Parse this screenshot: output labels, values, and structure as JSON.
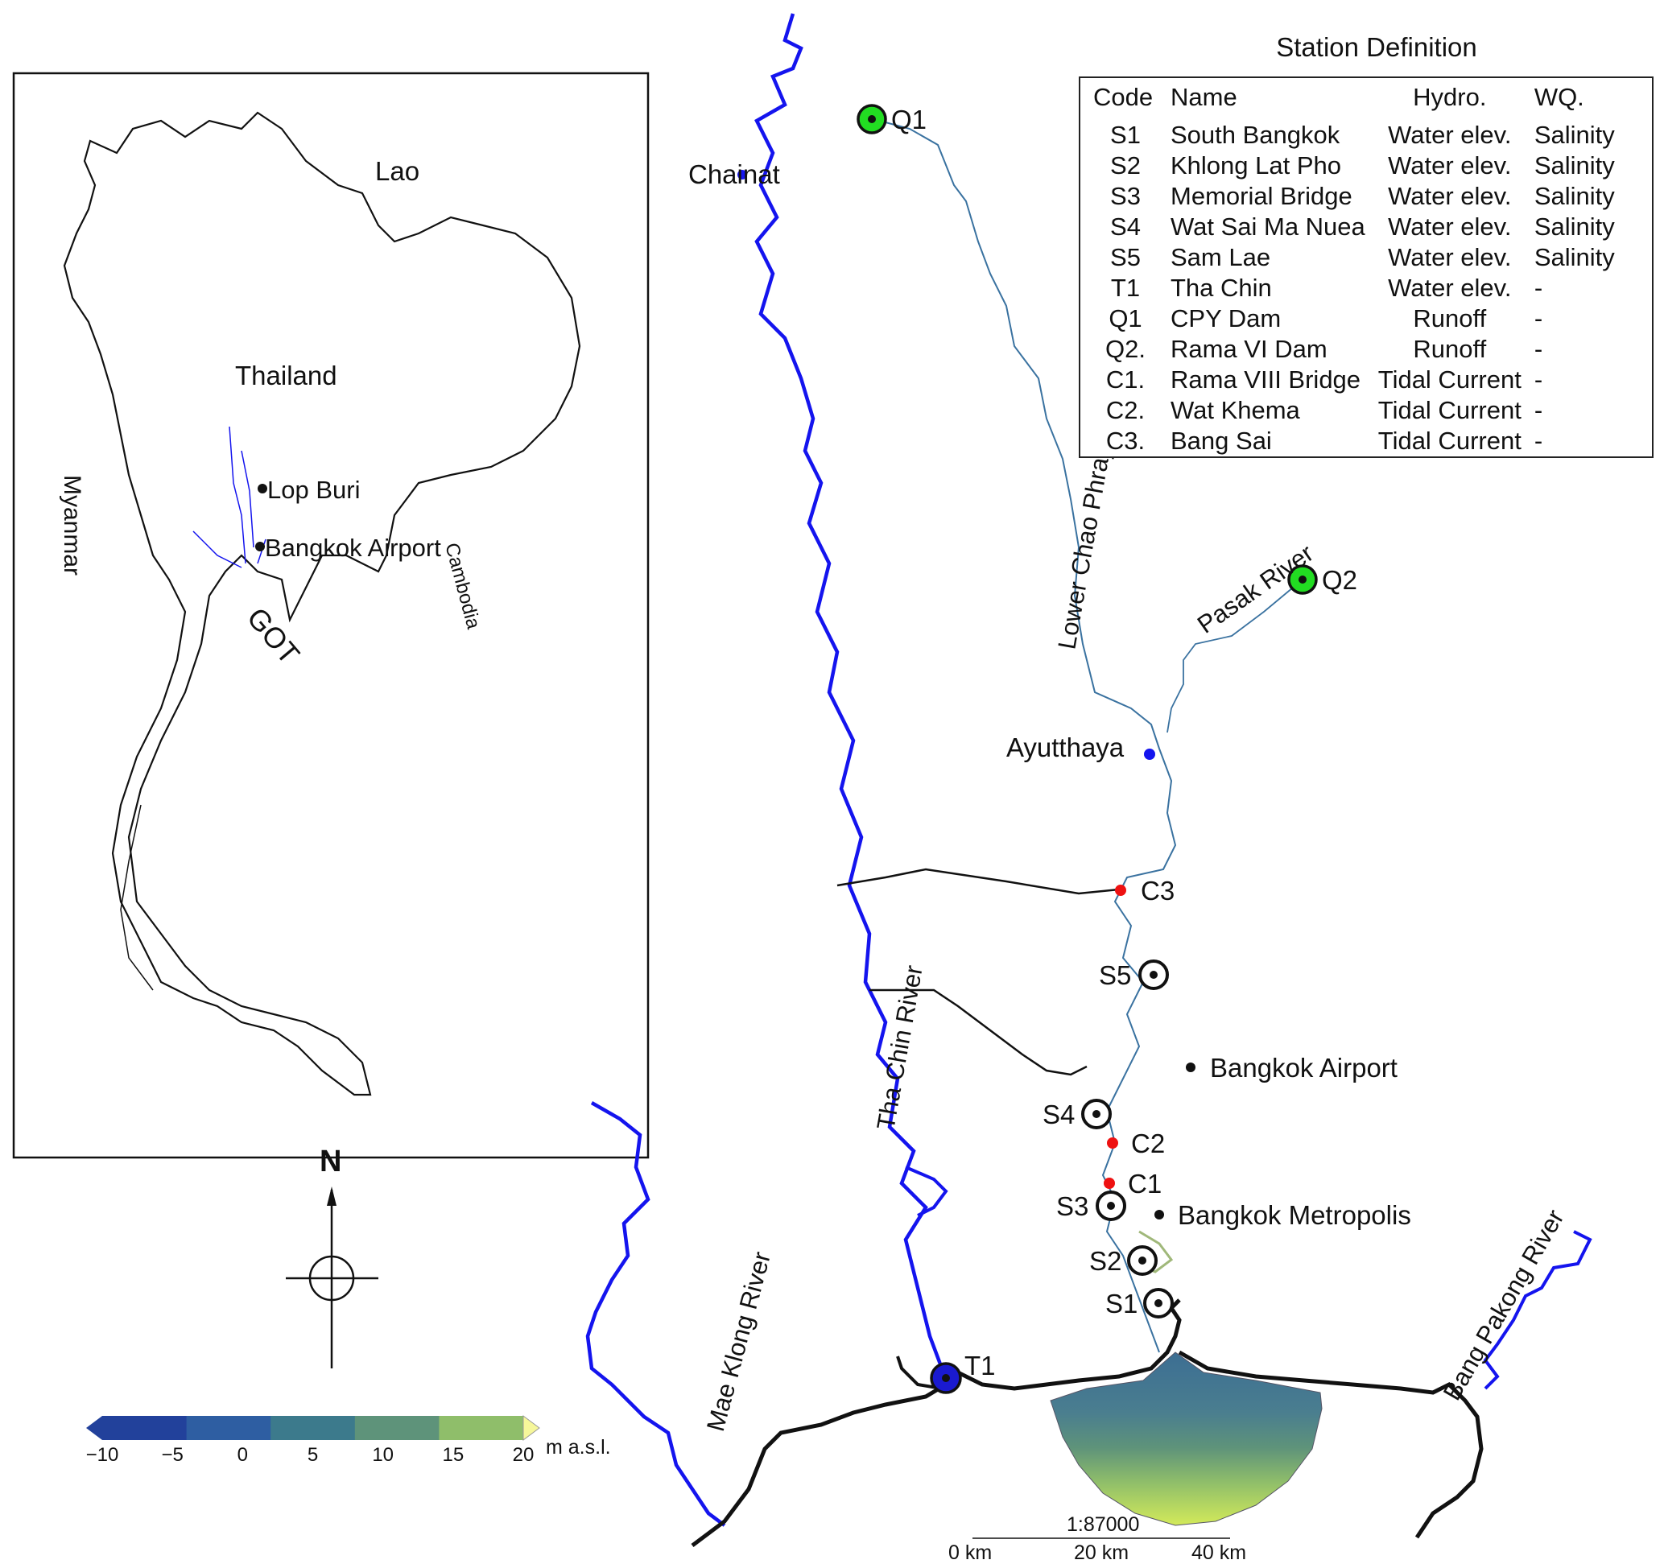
{
  "legend": {
    "title": "Station Definition",
    "headers": [
      "Code",
      "Name",
      "Hydro.",
      "WQ."
    ],
    "rows": [
      [
        "S1",
        "South Bangkok",
        "Water elev.",
        "Salinity"
      ],
      [
        "S2",
        "Khlong Lat Pho",
        "Water elev.",
        "Salinity"
      ],
      [
        "S3",
        "Memorial Bridge",
        "Water elev.",
        "Salinity"
      ],
      [
        "S4",
        "Wat Sai Ma Nuea",
        "Water elev.",
        "Salinity"
      ],
      [
        "S5",
        "Sam Lae",
        "Water elev.",
        "Salinity"
      ],
      [
        "T1",
        "Tha Chin",
        "Water elev.",
        "-"
      ],
      [
        "Q1",
        "CPY Dam",
        "Runoff",
        "-"
      ],
      [
        "Q2.",
        "Rama VI Dam",
        "Runoff",
        "-"
      ],
      [
        "C1.",
        "Rama VIII Bridge",
        "Tidal Current",
        "-"
      ],
      [
        "C2.",
        "Wat Khema",
        "Tidal Current",
        "-"
      ],
      [
        "C3.",
        "Bang Sai",
        "Tidal Current",
        "-"
      ]
    ]
  },
  "inset": {
    "countries": {
      "lao": "Lao",
      "thailand": "Thailand",
      "myanmar": "Myanmar",
      "cambodia": "Cambodia"
    },
    "gulf": "GOT",
    "places": {
      "lop_buri": "Lop Buri",
      "bangkok_airport": "Bangkok Airport"
    }
  },
  "stations": {
    "q1": "Q1",
    "q2": "Q2",
    "t1": "T1",
    "s1": "S1",
    "s2": "S2",
    "s3": "S3",
    "s4": "S4",
    "s5": "S5",
    "c1": "C1",
    "c2": "C2",
    "c3": "C3"
  },
  "places": {
    "chainat": "Chainat",
    "ayutthaya": "Ayutthaya",
    "bangkok_airport": "Bangkok Airport",
    "bangkok_metropolis": "Bangkok Metropolis"
  },
  "rivers": {
    "chao_phraya": "Lower Chao Phraya River",
    "pasak": "Pasak River",
    "tha_chin": "Tha Chin River",
    "mae_klong": "Mae Klong River",
    "bang_pakong": "Bang Pakong River"
  },
  "north_arrow": "N",
  "colorbar": {
    "unit": "m a.s.l.",
    "ticks": [
      "−10",
      "−5",
      "0",
      "5",
      "10",
      "15",
      "20"
    ],
    "colors": [
      "#22419b",
      "#2e5ea2",
      "#3c7a8c",
      "#5e937a",
      "#8fbe6a",
      "#d3ea5a",
      "#f6f79a"
    ]
  },
  "scale_bar": {
    "ratio": "1:87000",
    "ticks": [
      "0 km",
      "20 km",
      "40 km"
    ]
  },
  "colors": {
    "river_blue": "#1414ee",
    "chao_phraya_line": "#3a72a0",
    "dam_green": "#22dd22",
    "current_red": "#ee1111"
  }
}
